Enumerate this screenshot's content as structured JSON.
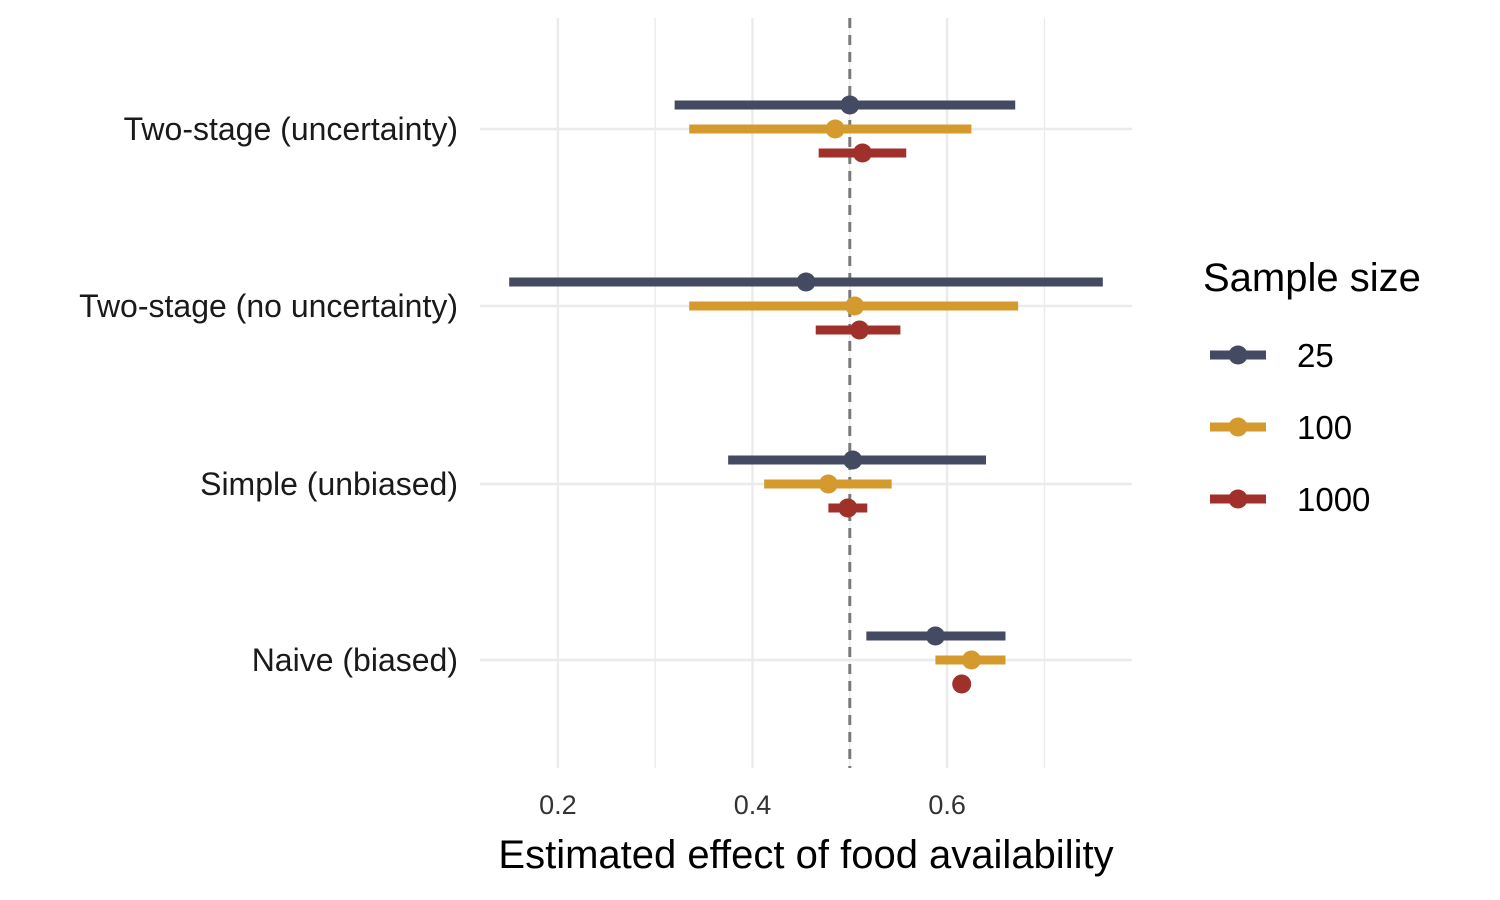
{
  "chart_data": {
    "type": "forest",
    "xlabel": "Estimated effect of food availability",
    "ylabel": "",
    "xlim": [
      0.12,
      0.79
    ],
    "x_ticks": [
      0.2,
      0.4,
      0.6
    ],
    "x_tick_labels": [
      "0.2",
      "0.4",
      "0.6"
    ],
    "grid": true,
    "reference_line": 0.5,
    "categories": [
      "Two-stage (uncertainty)",
      "Two-stage (no uncertainty)",
      "Simple (unbiased)",
      "Naive (biased)"
    ],
    "legend": {
      "title": "Sample size",
      "placement": "right",
      "items": [
        {
          "name": "25",
          "color": "#434a62"
        },
        {
          "name": "100",
          "color": "#d49a2e"
        },
        {
          "name": "1000",
          "color": "#a0302a"
        }
      ]
    },
    "series": [
      {
        "name": "25",
        "color": "#434a62",
        "points": [
          {
            "category": "Two-stage (uncertainty)",
            "estimate": 0.5,
            "lower": 0.32,
            "upper": 0.67
          },
          {
            "category": "Two-stage (no uncertainty)",
            "estimate": 0.455,
            "lower": 0.15,
            "upper": 0.76
          },
          {
            "category": "Simple (unbiased)",
            "estimate": 0.503,
            "lower": 0.375,
            "upper": 0.64
          },
          {
            "category": "Naive (biased)",
            "estimate": 0.588,
            "lower": 0.517,
            "upper": 0.66
          }
        ]
      },
      {
        "name": "100",
        "color": "#d49a2e",
        "points": [
          {
            "category": "Two-stage (uncertainty)",
            "estimate": 0.485,
            "lower": 0.335,
            "upper": 0.625
          },
          {
            "category": "Two-stage (no uncertainty)",
            "estimate": 0.505,
            "lower": 0.335,
            "upper": 0.673
          },
          {
            "category": "Simple (unbiased)",
            "estimate": 0.478,
            "lower": 0.412,
            "upper": 0.543
          },
          {
            "category": "Naive (biased)",
            "estimate": 0.625,
            "lower": 0.588,
            "upper": 0.66
          }
        ]
      },
      {
        "name": "1000",
        "color": "#a0302a",
        "points": [
          {
            "category": "Two-stage (uncertainty)",
            "estimate": 0.513,
            "lower": 0.468,
            "upper": 0.558
          },
          {
            "category": "Two-stage (no uncertainty)",
            "estimate": 0.51,
            "lower": 0.465,
            "upper": 0.552
          },
          {
            "category": "Simple (unbiased)",
            "estimate": 0.498,
            "lower": 0.478,
            "upper": 0.518
          },
          {
            "category": "Naive (biased)",
            "estimate": 0.615,
            "lower": 0.61,
            "upper": 0.62
          }
        ]
      }
    ]
  }
}
